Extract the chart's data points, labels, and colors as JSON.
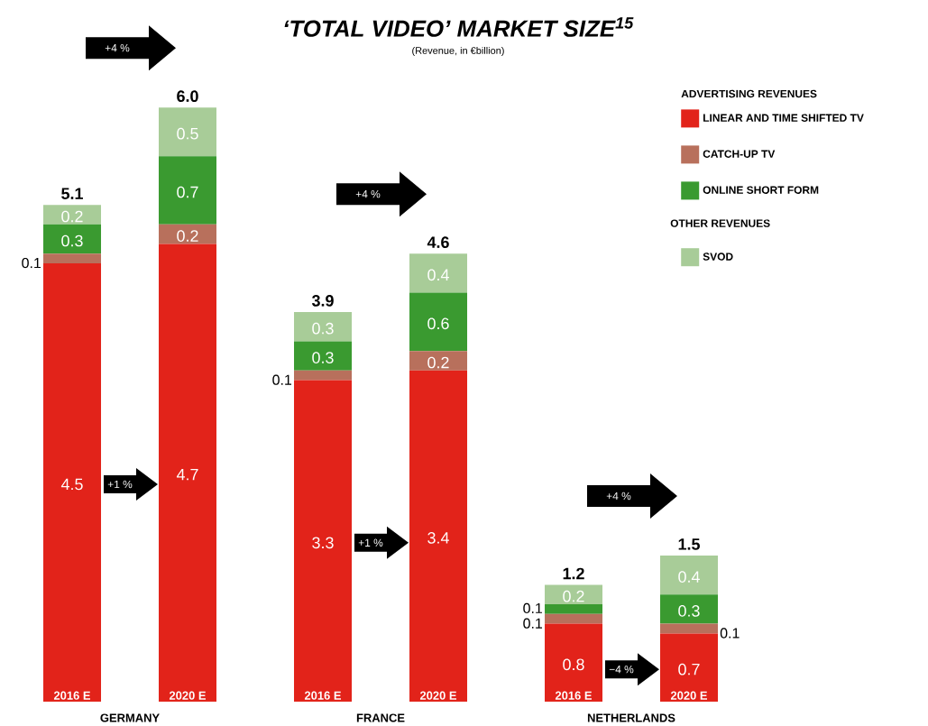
{
  "chart_data": {
    "type": "bar",
    "stacked": true,
    "title": "‘TOTAL VIDEO’ MARKET SIZE$^{15}$",
    "subtitle": "(Revenue, in €billion)",
    "categories": [
      "2016 E",
      "2020 E",
      "2016 E",
      "2020 E",
      "2016 E",
      "2020 E"
    ],
    "series": [
      {
        "name": "LINEAR AND TIME SHIFTED TV",
        "color": "#e2231a",
        "values": [
          4.5,
          4.7,
          3.3,
          3.4,
          0.8,
          0.7
        ]
      },
      {
        "name": "CATCH-UP TV",
        "color": "#b8705c",
        "values": [
          0.1,
          0.2,
          0.1,
          0.2,
          0.1,
          0.1
        ]
      },
      {
        "name": "ONLINE SHORT FORM",
        "color": "#3a9a30",
        "values": [
          0.3,
          0.7,
          0.3,
          0.6,
          0.1,
          0.3
        ]
      },
      {
        "name": "SVOD",
        "color": "#a8cc98",
        "values": [
          0.2,
          0.5,
          0.3,
          0.4,
          0.2,
          0.4
        ]
      }
    ],
    "data_labels": true,
    "totals": [
      "5.1",
      "6.0",
      "3.9",
      "4.6",
      "1.2",
      "1.5"
    ],
    "legend": "top right",
    "legend_title": "ADVERTISING REVENUES",
    "annotations": [
      "GERMANY",
      "FRANCE",
      "NETHERLANDS",
      "OTHER REVENUES",
      "+4 %",
      "+4 %",
      "+4 %",
      "+1 %",
      "+1 %",
      "−4 %"
    ]
  }
}
